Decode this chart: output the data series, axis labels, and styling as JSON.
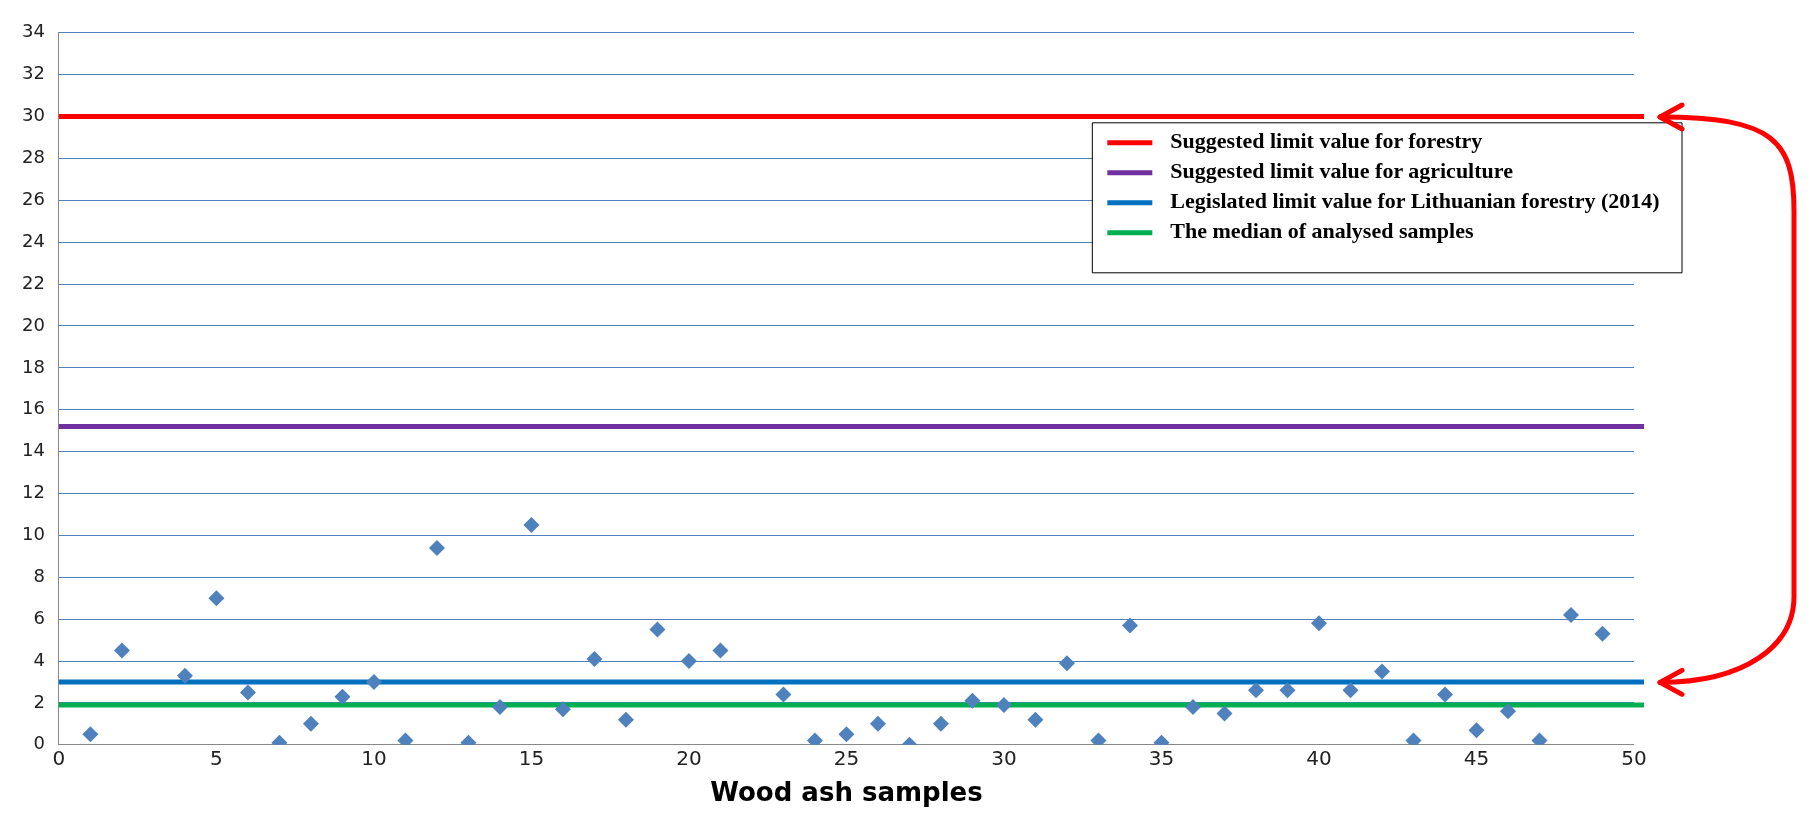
{
  "chart_data": {
    "type": "scatter",
    "xlabel": "Wood ash samples",
    "x": [
      1,
      2,
      4,
      5,
      6,
      7,
      8,
      9,
      10,
      11,
      12,
      13,
      14,
      15,
      16,
      17,
      18,
      19,
      20,
      21,
      23,
      24,
      25,
      26,
      27,
      28,
      29,
      30,
      31,
      32,
      33,
      34,
      35,
      36,
      37,
      38,
      39,
      40,
      41,
      42,
      43,
      44,
      45,
      46,
      47,
      48,
      49
    ],
    "series": [
      {
        "color": "#4f81bd",
        "values": [
          0.5,
          4.5,
          3.3,
          7.0,
          2.5,
          0.1,
          1.0,
          2.3,
          3.0,
          0.2,
          9.4,
          0.1,
          1.8,
          10.5,
          1.7,
          4.1,
          1.2,
          5.5,
          4.0,
          4.5,
          2.4,
          0.2,
          0.5,
          1.0,
          0.0,
          1.0,
          2.1,
          1.9,
          1.2,
          3.9,
          0.2,
          5.7,
          0.1,
          1.8,
          1.5,
          2.6,
          2.6,
          5.8,
          2.6,
          3.5,
          0.2,
          2.4,
          0.7,
          1.6,
          0.2,
          6.2,
          5.3
        ]
      }
    ],
    "xlim": [
      0,
      50
    ],
    "xticks": [
      0,
      5,
      10,
      15,
      20,
      25,
      30,
      35,
      40,
      45,
      50
    ],
    "ylim": [
      0,
      34
    ],
    "yticks": [
      0,
      2,
      4,
      6,
      8,
      10,
      12,
      14,
      16,
      18,
      20,
      22,
      24,
      26,
      28,
      30,
      32,
      34
    ],
    "grid": "y",
    "marker": "diamond",
    "legend": "top right",
    "ref_lines": [
      {
        "axis": "y",
        "value": 30,
        "label": "Suggested limit value for forestry",
        "color": "#ff0000"
      },
      {
        "axis": "y",
        "value": 15.2,
        "label": "Suggested limit value for agriculture",
        "color": "#7030a0"
      },
      {
        "axis": "y",
        "value": 3,
        "label": "Legislated limit value for Lithuanian forestry (2014)",
        "color": "#0070c0"
      },
      {
        "axis": "y",
        "value": 1.9,
        "label": "The median of analysed samples",
        "color": "#00b050"
      }
    ]
  }
}
